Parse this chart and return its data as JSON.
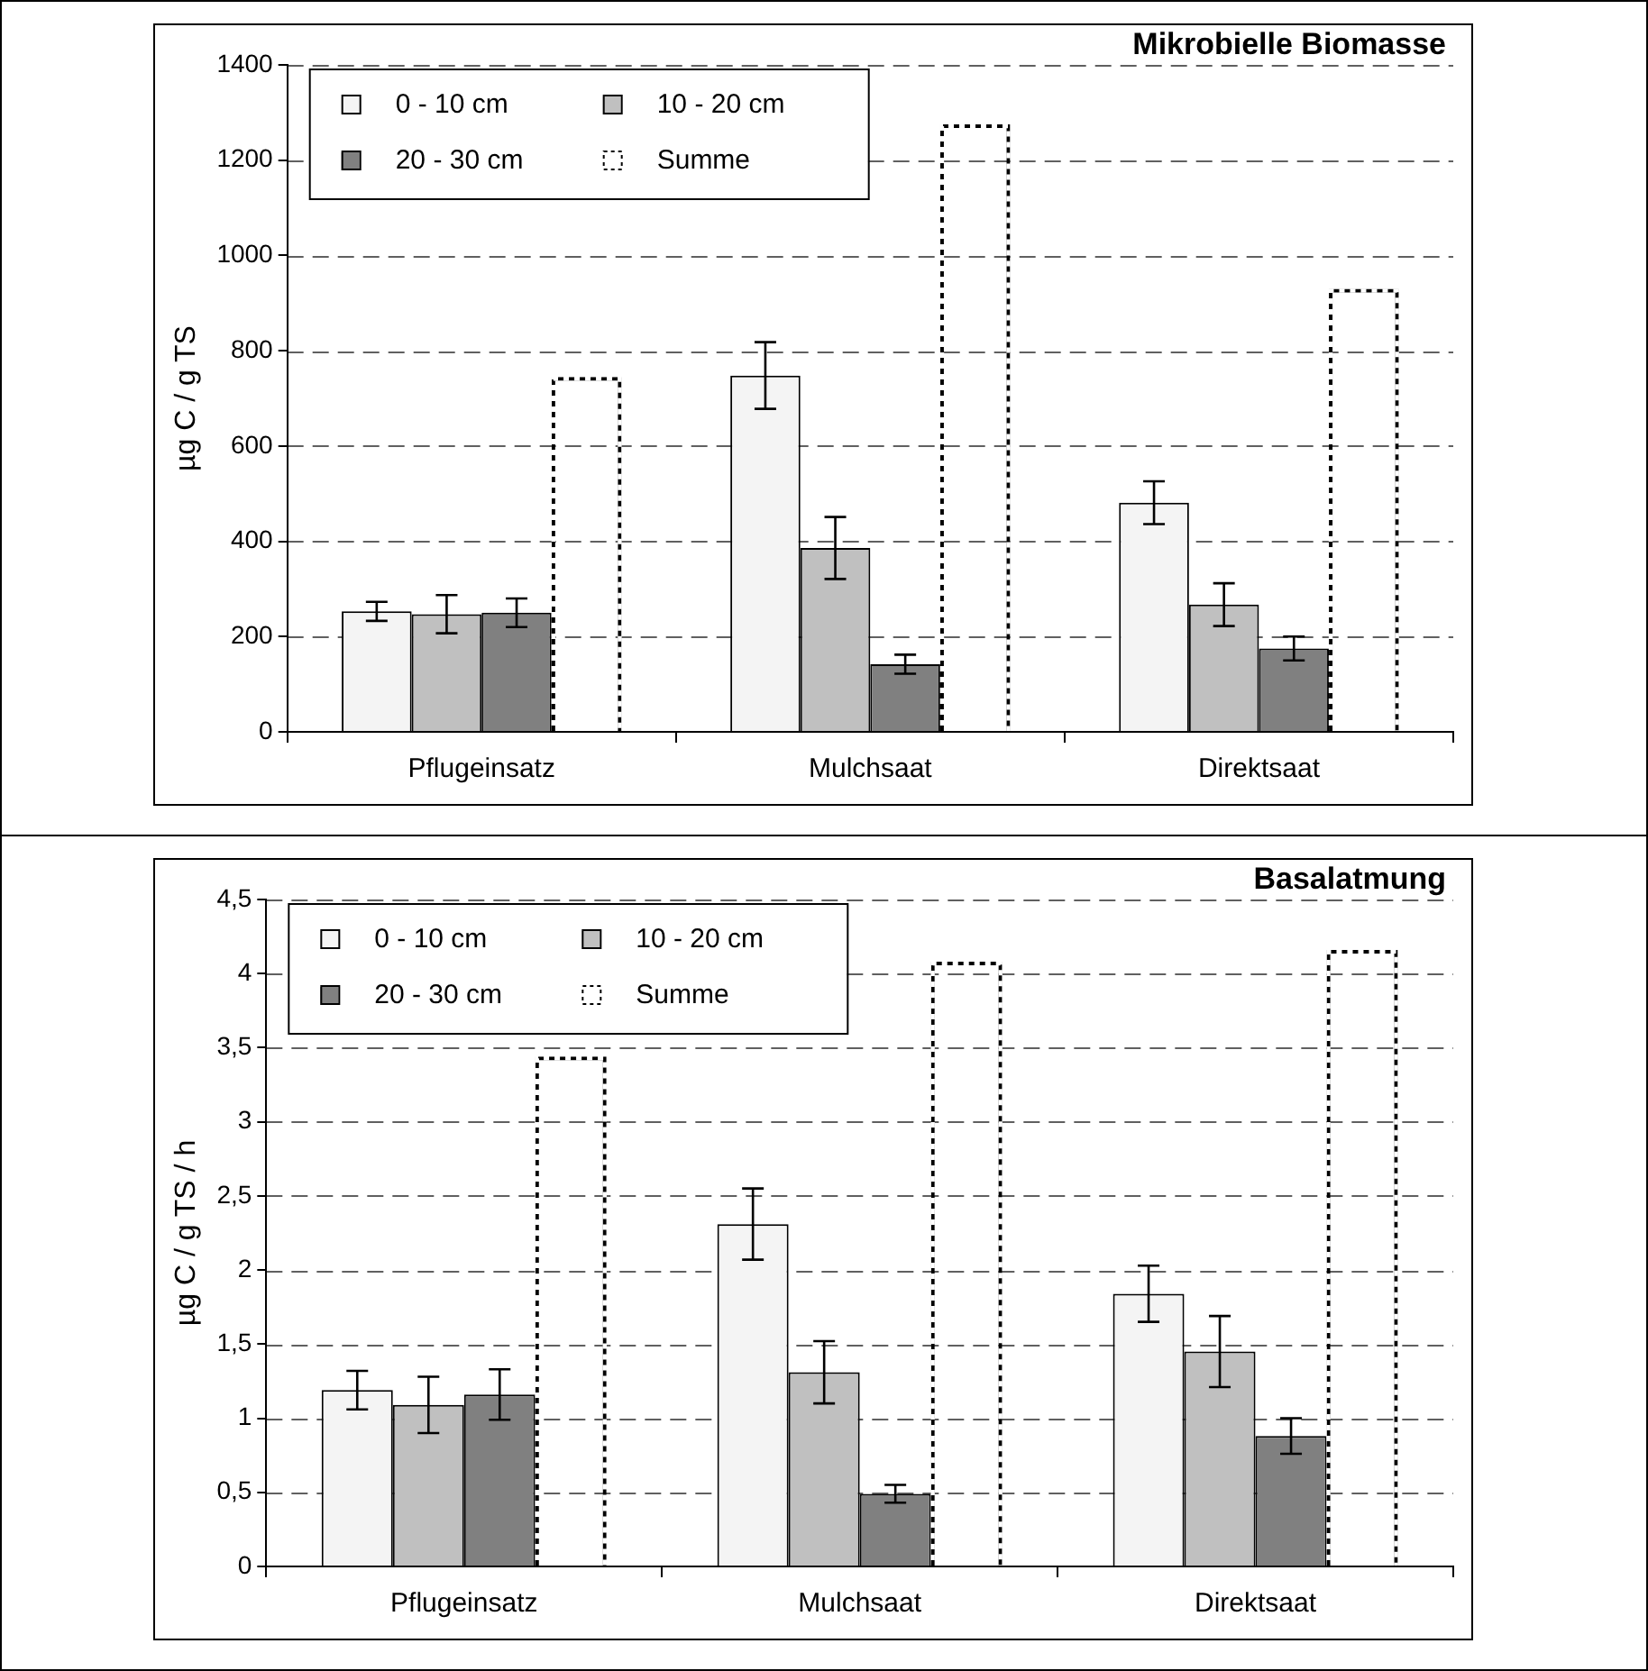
{
  "chart_data": [
    {
      "type": "bar",
      "title": "Mikrobielle Biomasse",
      "ylabel": "µg C / g TS",
      "categories": [
        "Pflugeinsatz",
        "Mulchsaat",
        "Direktsaat"
      ],
      "series": [
        {
          "name": "0 - 10 cm",
          "color": "#f4f4f4",
          "values": [
            253,
            748,
            481
          ],
          "errors": [
            20,
            70,
            45
          ]
        },
        {
          "name": "10 - 20 cm",
          "color": "#c0c0c0",
          "values": [
            247,
            386,
            267
          ],
          "errors": [
            40,
            65,
            45
          ]
        },
        {
          "name": "20 - 30 cm",
          "color": "#808080",
          "values": [
            250,
            142,
            175
          ],
          "errors": [
            30,
            20,
            25
          ]
        },
        {
          "name": "Summe",
          "color": "#000000",
          "line_style": "dotted",
          "values": [
            745,
            1275,
            930
          ]
        }
      ],
      "ylim": [
        0,
        1400
      ],
      "yticks": [
        0,
        200,
        400,
        600,
        800,
        1000,
        1200,
        1400
      ],
      "grid": "y",
      "legend": "top left"
    },
    {
      "type": "bar",
      "title": "Basalatmung",
      "ylabel": "µg C / g TS / h",
      "categories": [
        "Pflugeinsatz",
        "Mulchsaat",
        "Direktsaat"
      ],
      "series": [
        {
          "name": "0 - 10 cm",
          "color": "#f4f4f4",
          "values": [
            1.19,
            2.31,
            1.84
          ],
          "errors": [
            0.13,
            0.24,
            0.19
          ]
        },
        {
          "name": "10 - 20 cm",
          "color": "#c0c0c0",
          "values": [
            1.09,
            1.31,
            1.45
          ],
          "errors": [
            0.19,
            0.21,
            0.24
          ]
        },
        {
          "name": "20 - 30 cm",
          "color": "#808080",
          "values": [
            1.16,
            0.49,
            0.88
          ],
          "errors": [
            0.17,
            0.06,
            0.12
          ]
        },
        {
          "name": "Summe",
          "color": "#000000",
          "line_style": "dotted",
          "values": [
            3.44,
            4.08,
            4.16
          ]
        }
      ],
      "ylim": [
        0,
        4.5
      ],
      "yticks": [
        0,
        {
          "value": 0.5,
          "label": "0,5"
        },
        1,
        {
          "value": 1.5,
          "label": "1,5"
        },
        2,
        {
          "value": 2.5,
          "label": "2,5"
        },
        3,
        {
          "value": 3.5,
          "label": "3,5"
        },
        4,
        {
          "value": 4.5,
          "label": "4,5"
        }
      ],
      "grid": "y",
      "legend": "top left"
    }
  ]
}
